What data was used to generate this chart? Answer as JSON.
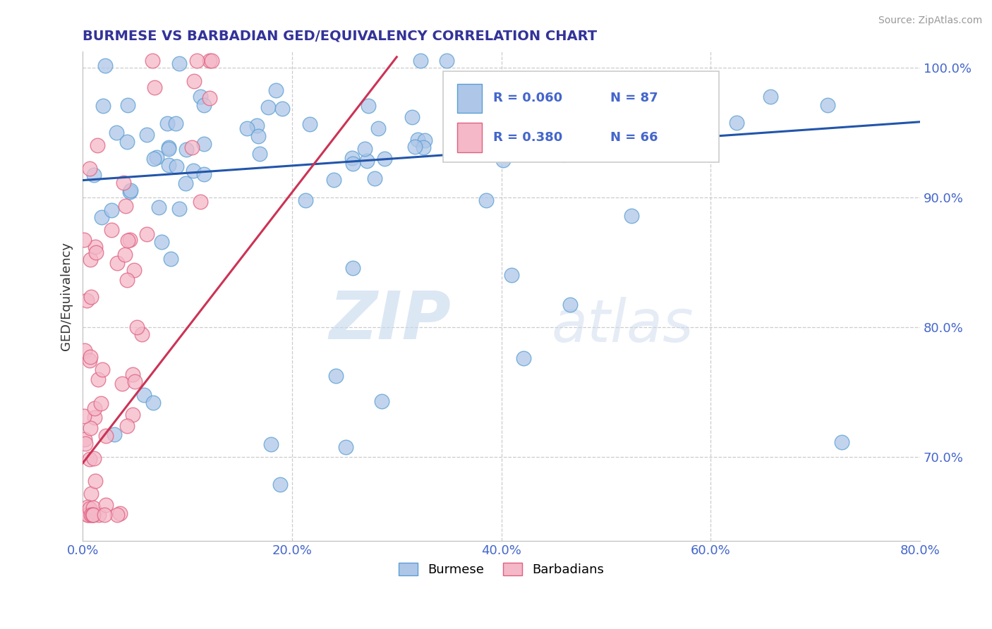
{
  "title": "BURMESE VS BARBADIAN GED/EQUIVALENCY CORRELATION CHART",
  "source_text": "Source: ZipAtlas.com",
  "ylabel": "GED/Equivalency",
  "xlim": [
    0.0,
    0.8
  ],
  "ylim": [
    0.635,
    1.012
  ],
  "xtick_labels": [
    "0.0%",
    "20.0%",
    "40.0%",
    "60.0%",
    "80.0%"
  ],
  "xtick_vals": [
    0.0,
    0.2,
    0.4,
    0.6,
    0.8
  ],
  "ytick_labels": [
    "70.0%",
    "80.0%",
    "90.0%",
    "100.0%"
  ],
  "ytick_vals": [
    0.7,
    0.8,
    0.9,
    1.0
  ],
  "burmese_color": "#aec6e8",
  "burmese_edge": "#5a9fd4",
  "barbadian_color": "#f4b8c8",
  "barbadian_edge": "#e06080",
  "trend_blue": "#2255aa",
  "trend_pink": "#cc3355",
  "legend_R1": "R = 0.060",
  "legend_N1": "N = 87",
  "legend_R2": "R = 0.380",
  "legend_N2": "N = 66",
  "legend_label1": "Burmese",
  "legend_label2": "Barbadians",
  "watermark_zip": "ZIP",
  "watermark_atlas": "atlas",
  "background_color": "#ffffff",
  "grid_color": "#cccccc",
  "title_color": "#333399",
  "axis_color": "#4466cc",
  "ylabel_color": "#333333"
}
